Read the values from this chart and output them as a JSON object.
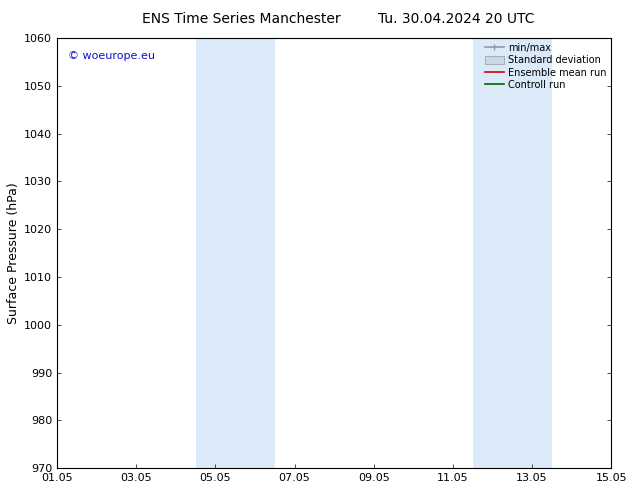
{
  "title_left": "ENS Time Series Manchester",
  "title_right": "Tu. 30.04.2024 20 UTC",
  "ylabel": "Surface Pressure (hPa)",
  "ylim": [
    970,
    1060
  ],
  "yticks": [
    970,
    980,
    990,
    1000,
    1010,
    1020,
    1030,
    1040,
    1050,
    1060
  ],
  "xlim_start": 0,
  "xlim_end": 14,
  "xtick_labels": [
    "01.05",
    "03.05",
    "05.05",
    "07.05",
    "09.05",
    "11.05",
    "13.05",
    "15.05"
  ],
  "xtick_positions": [
    0,
    2,
    4,
    6,
    8,
    10,
    12,
    14
  ],
  "shaded_bands": [
    {
      "x_start": 3.5,
      "x_end": 5.5
    },
    {
      "x_start": 10.5,
      "x_end": 12.5
    }
  ],
  "shaded_color": "#daeaf8",
  "bg_color": "#ffffff",
  "watermark_text": "© woeurope.eu",
  "watermark_color": "#1111cc",
  "legend_entries": [
    {
      "label": "min/max",
      "color": "#999999",
      "lw": 1.2
    },
    {
      "label": "Standard deviation",
      "color": "#c8d8e8",
      "lw": 6
    },
    {
      "label": "Ensemble mean run",
      "color": "#dd0000",
      "lw": 1.2
    },
    {
      "label": "Controll run",
      "color": "#006600",
      "lw": 1.2
    }
  ],
  "tick_fontsize": 8,
  "label_fontsize": 9,
  "title_fontsize": 10,
  "watermark_fontsize": 8
}
